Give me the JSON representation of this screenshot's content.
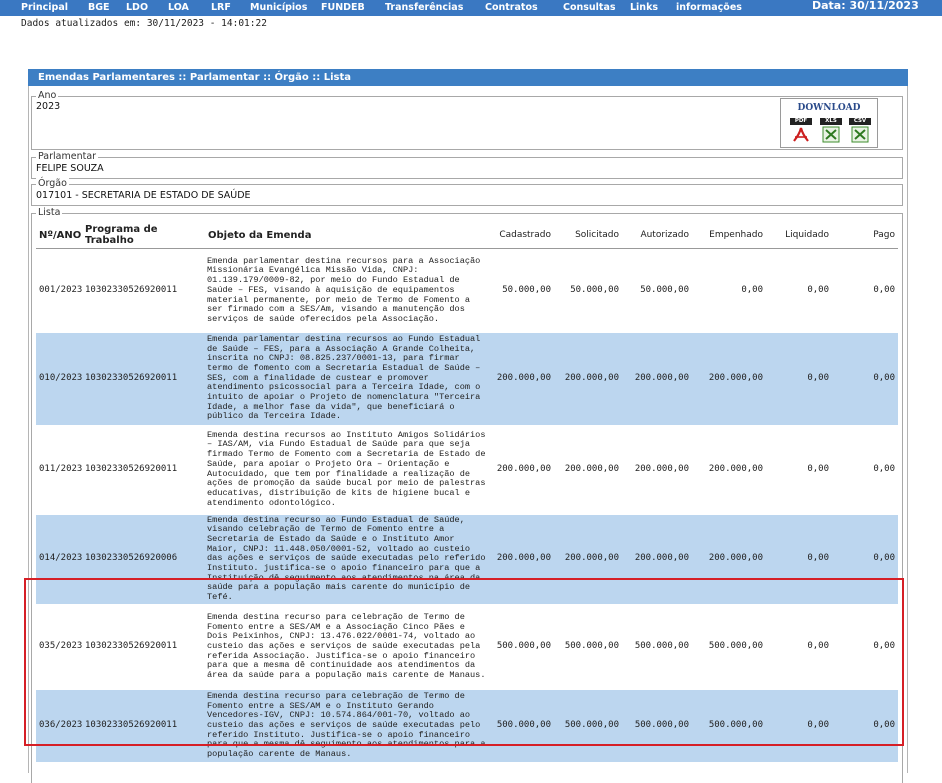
{
  "nav": {
    "items": [
      "Principal",
      "BGE",
      "LDO",
      "LOA",
      "LRF",
      "Municípios",
      "FUNDEB",
      "Transferências",
      "Contratos",
      "Consultas",
      "Links",
      "informações"
    ],
    "date_clipped": "Data: 30/11/2023"
  },
  "updated": "Dados atualizados em: 30/11/2023 - 14:01:22",
  "panel": {
    "title": "Emendas Parlamentares :: Parlamentar :: Órgão :: Lista",
    "ano": {
      "legend": "Ano",
      "value": "2023"
    },
    "download": {
      "title": "DOWNLOAD",
      "pdf": "PDF",
      "xls": "XLS",
      "csv": "CSV"
    },
    "parlamentar": {
      "legend": "Parlamentar",
      "value": "FELIPE SOUZA"
    },
    "orgao": {
      "legend": "Órgão",
      "value": "017101 - SECRETARIA DE ESTADO DE SAÚDE"
    },
    "lista": {
      "legend": "Lista"
    }
  },
  "table": {
    "headers": [
      "Nº/ANO",
      "Programa de Trabalho",
      "Objeto da Emenda",
      "Cadastrado",
      "Solicitado",
      "Autorizado",
      "Empenhado",
      "Liquidado",
      "Pago"
    ],
    "rows": [
      {
        "num": "001/2023",
        "prog": "10302330526920011",
        "obj": "Emenda parlamentar destina recursos para a Associação Missionária Evangélica Missão Vida, CNPJ: 01.139.179/0009-82, por meio do Fundo Estadual de Saúde – FES, visando à aquisição de equipamentos material permanente, por meio de Termo de Fomento a ser firmado com a SES/Am, visando a manutenção dos serviços de saúde oferecidos pela Associação.",
        "cad": "50.000,00",
        "sol": "50.000,00",
        "aut": "50.000,00",
        "emp": "0,00",
        "liq": "0,00",
        "pago": "0,00"
      },
      {
        "num": "010/2023",
        "prog": "10302330526920011",
        "obj": "Emenda parlamentar destina recursos ao Fundo Estadual de Saúde – FES, para a Associação A Grande Colheita, inscrita no CNPJ: 08.825.237/0001-13, para firmar termo de fomento com a Secretaria Estadual de Saúde – SES, com a finalidade de custear e promover atendimento psicossocial para a Terceira Idade, com o intuito de apoiar o Projeto de nomenclatura \"Terceira Idade, a melhor fase da vida\", que beneficiará o público da Terceira Idade.",
        "cad": "200.000,00",
        "sol": "200.000,00",
        "aut": "200.000,00",
        "emp": "200.000,00",
        "liq": "0,00",
        "pago": "0,00"
      },
      {
        "num": "011/2023",
        "prog": "10302330526920011",
        "obj": "Emenda destina recursos ao Instituto Amigos Solidários – IAS/AM, via Fundo Estadual de Saúde para que seja firmado Termo de Fomento com a Secretaria de Estado de Saúde, para apoiar o Projeto Ora – Orientação e Autocuidado, que tem por finalidade a realização de ações de promoção da saúde bucal por meio de palestras educativas, distribuição de kits de higiene bucal e atendimento odontológico.",
        "cad": "200.000,00",
        "sol": "200.000,00",
        "aut": "200.000,00",
        "emp": "200.000,00",
        "liq": "0,00",
        "pago": "0,00"
      },
      {
        "num": "014/2023",
        "prog": "10302330526920006",
        "obj": "Emenda destina recurso ao Fundo Estadual de Saúde, visando celebração de Termo de Fomento entre a Secretaria de Estado da Saúde e o Instituto Amor Maior, CNPJ: 11.448.050/0001-52, voltado ao custeio das ações e serviços de saúde executadas pelo referido Instituto. justifica-se o apoio financeiro para que a Instituição dê seguimento aos atendimentos na área da saúde para a população mais carente do município de Tefé.",
        "cad": "200.000,00",
        "sol": "200.000,00",
        "aut": "200.000,00",
        "emp": "200.000,00",
        "liq": "0,00",
        "pago": "0,00"
      },
      {
        "num": "035/2023",
        "prog": "10302330526920011",
        "obj": "Emenda destina recurso para celebração de Termo de Fomento entre a SES/AM e a Associação Cinco Pães e Dois Peixinhos, CNPJ: 13.476.022/0001-74, voltado ao custeio das ações e serviços de saúde executadas pela referida Associação. Justifica-se o apoio financeiro para que a mesma dê continuidade aos atendimentos da área da saúde para a população mais carente de Manaus.",
        "cad": "500.000,00",
        "sol": "500.000,00",
        "aut": "500.000,00",
        "emp": "500.000,00",
        "liq": "0,00",
        "pago": "0,00"
      },
      {
        "num": "036/2023",
        "prog": "10302330526920011",
        "obj": "Emenda destina recurso para celebração de Termo de Fomento entre a SES/AM e o Instituto Gerando Vencedores-IGV, CNPJ: 10.574.864/001-70, voltado ao custeio das ações e serviços de saúde executadas pelo referido Instituto. Justifica-se o apoio financeiro para que a mesma dê seguimento aos atendimentos para a população carente de Manaus.",
        "cad": "500.000,00",
        "sol": "500.000,00",
        "aut": "500.000,00",
        "emp": "500.000,00",
        "liq": "0,00",
        "pago": "0,00"
      }
    ]
  },
  "colors": {
    "nav_bg": "#3a78c2",
    "panel_title_bg": "#3d7fc4",
    "row_alt_bg": "#bcd6ef",
    "highlight_border": "#d61f26"
  }
}
